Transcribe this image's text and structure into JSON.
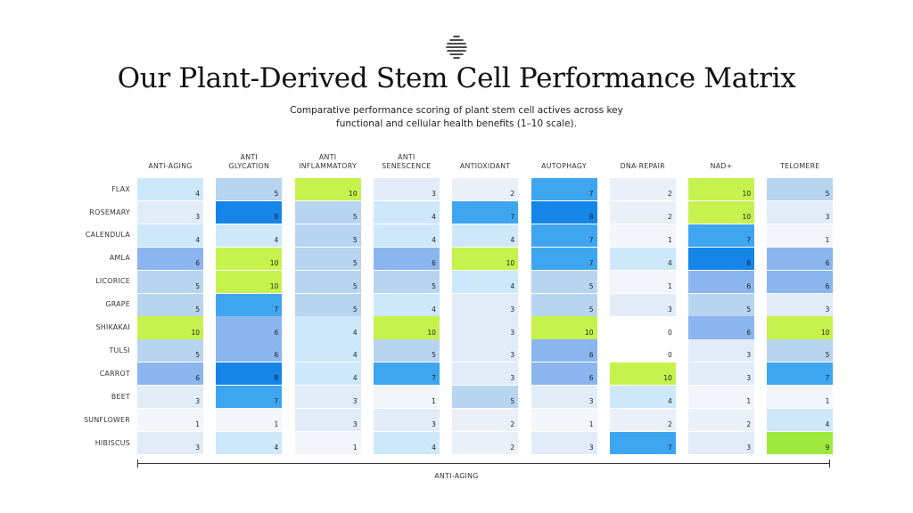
{
  "header": {
    "logo_icon": "stem-cell-logo-icon",
    "title": "Our Plant-Derived Stem Cell Performance Matrix",
    "subtitle": "Comparative performance scoring of plant stem cell actives across key functional and cellular health benefits (1–10 scale)."
  },
  "chart_data": {
    "type": "heatmap",
    "title": "Our Plant-Derived Stem Cell Performance Matrix",
    "subtitle": "Comparative performance scoring of plant stem cell actives across key functional and cellular health benefits (1–10 scale).",
    "xlabel": "ANTI-AGING",
    "columns": [
      "ANTI-AGING",
      "ANTI\nGLYCATION",
      "ANTI\nINFLAMMATORY",
      "ANTI\nSENESCENCE",
      "ANTIOXIDANT",
      "AUTOPHAGY",
      "DNA-REPAIR",
      "NAD+",
      "TELOMERE"
    ],
    "rows": [
      "FLAX",
      "ROSEMARY",
      "CALENDULA",
      "AMLA",
      "LICORICE",
      "GRAPE",
      "SHIKAKAI",
      "TULSI",
      "CARROT",
      "BEET",
      "SUNFLOWER",
      "HIBISCUS"
    ],
    "values": [
      [
        4,
        5,
        10,
        3,
        2,
        7,
        2,
        10,
        5
      ],
      [
        3,
        8,
        5,
        4,
        7,
        8,
        2,
        10,
        3
      ],
      [
        4,
        4,
        5,
        4,
        4,
        7,
        1,
        7,
        1
      ],
      [
        6,
        10,
        5,
        6,
        10,
        7,
        4,
        8,
        6
      ],
      [
        5,
        10,
        5,
        5,
        4,
        5,
        1,
        6,
        6
      ],
      [
        5,
        7,
        5,
        4,
        3,
        5,
        3,
        5,
        3
      ],
      [
        10,
        6,
        4,
        10,
        3,
        10,
        0,
        6,
        10
      ],
      [
        5,
        6,
        4,
        5,
        3,
        6,
        0,
        3,
        5
      ],
      [
        6,
        8,
        4,
        7,
        3,
        6,
        10,
        3,
        7
      ],
      [
        3,
        7,
        3,
        1,
        5,
        3,
        4,
        1,
        1
      ],
      [
        1,
        1,
        3,
        3,
        2,
        1,
        2,
        2,
        4
      ],
      [
        3,
        4,
        1,
        4,
        2,
        3,
        7,
        3,
        9
      ]
    ],
    "value_range": [
      0,
      10
    ],
    "colors": {
      "0": "#ffffff",
      "1": "#f3f5fa",
      "2": "#ebf0f8",
      "3": "#e1ecf8",
      "4": "#cde8fb",
      "5": "#b7d4f0",
      "6": "#8ab5ef",
      "7": "#3ea6f0",
      "8": "#1685e8",
      "9": "#9eea3c",
      "10": "#c6f24e"
    }
  }
}
